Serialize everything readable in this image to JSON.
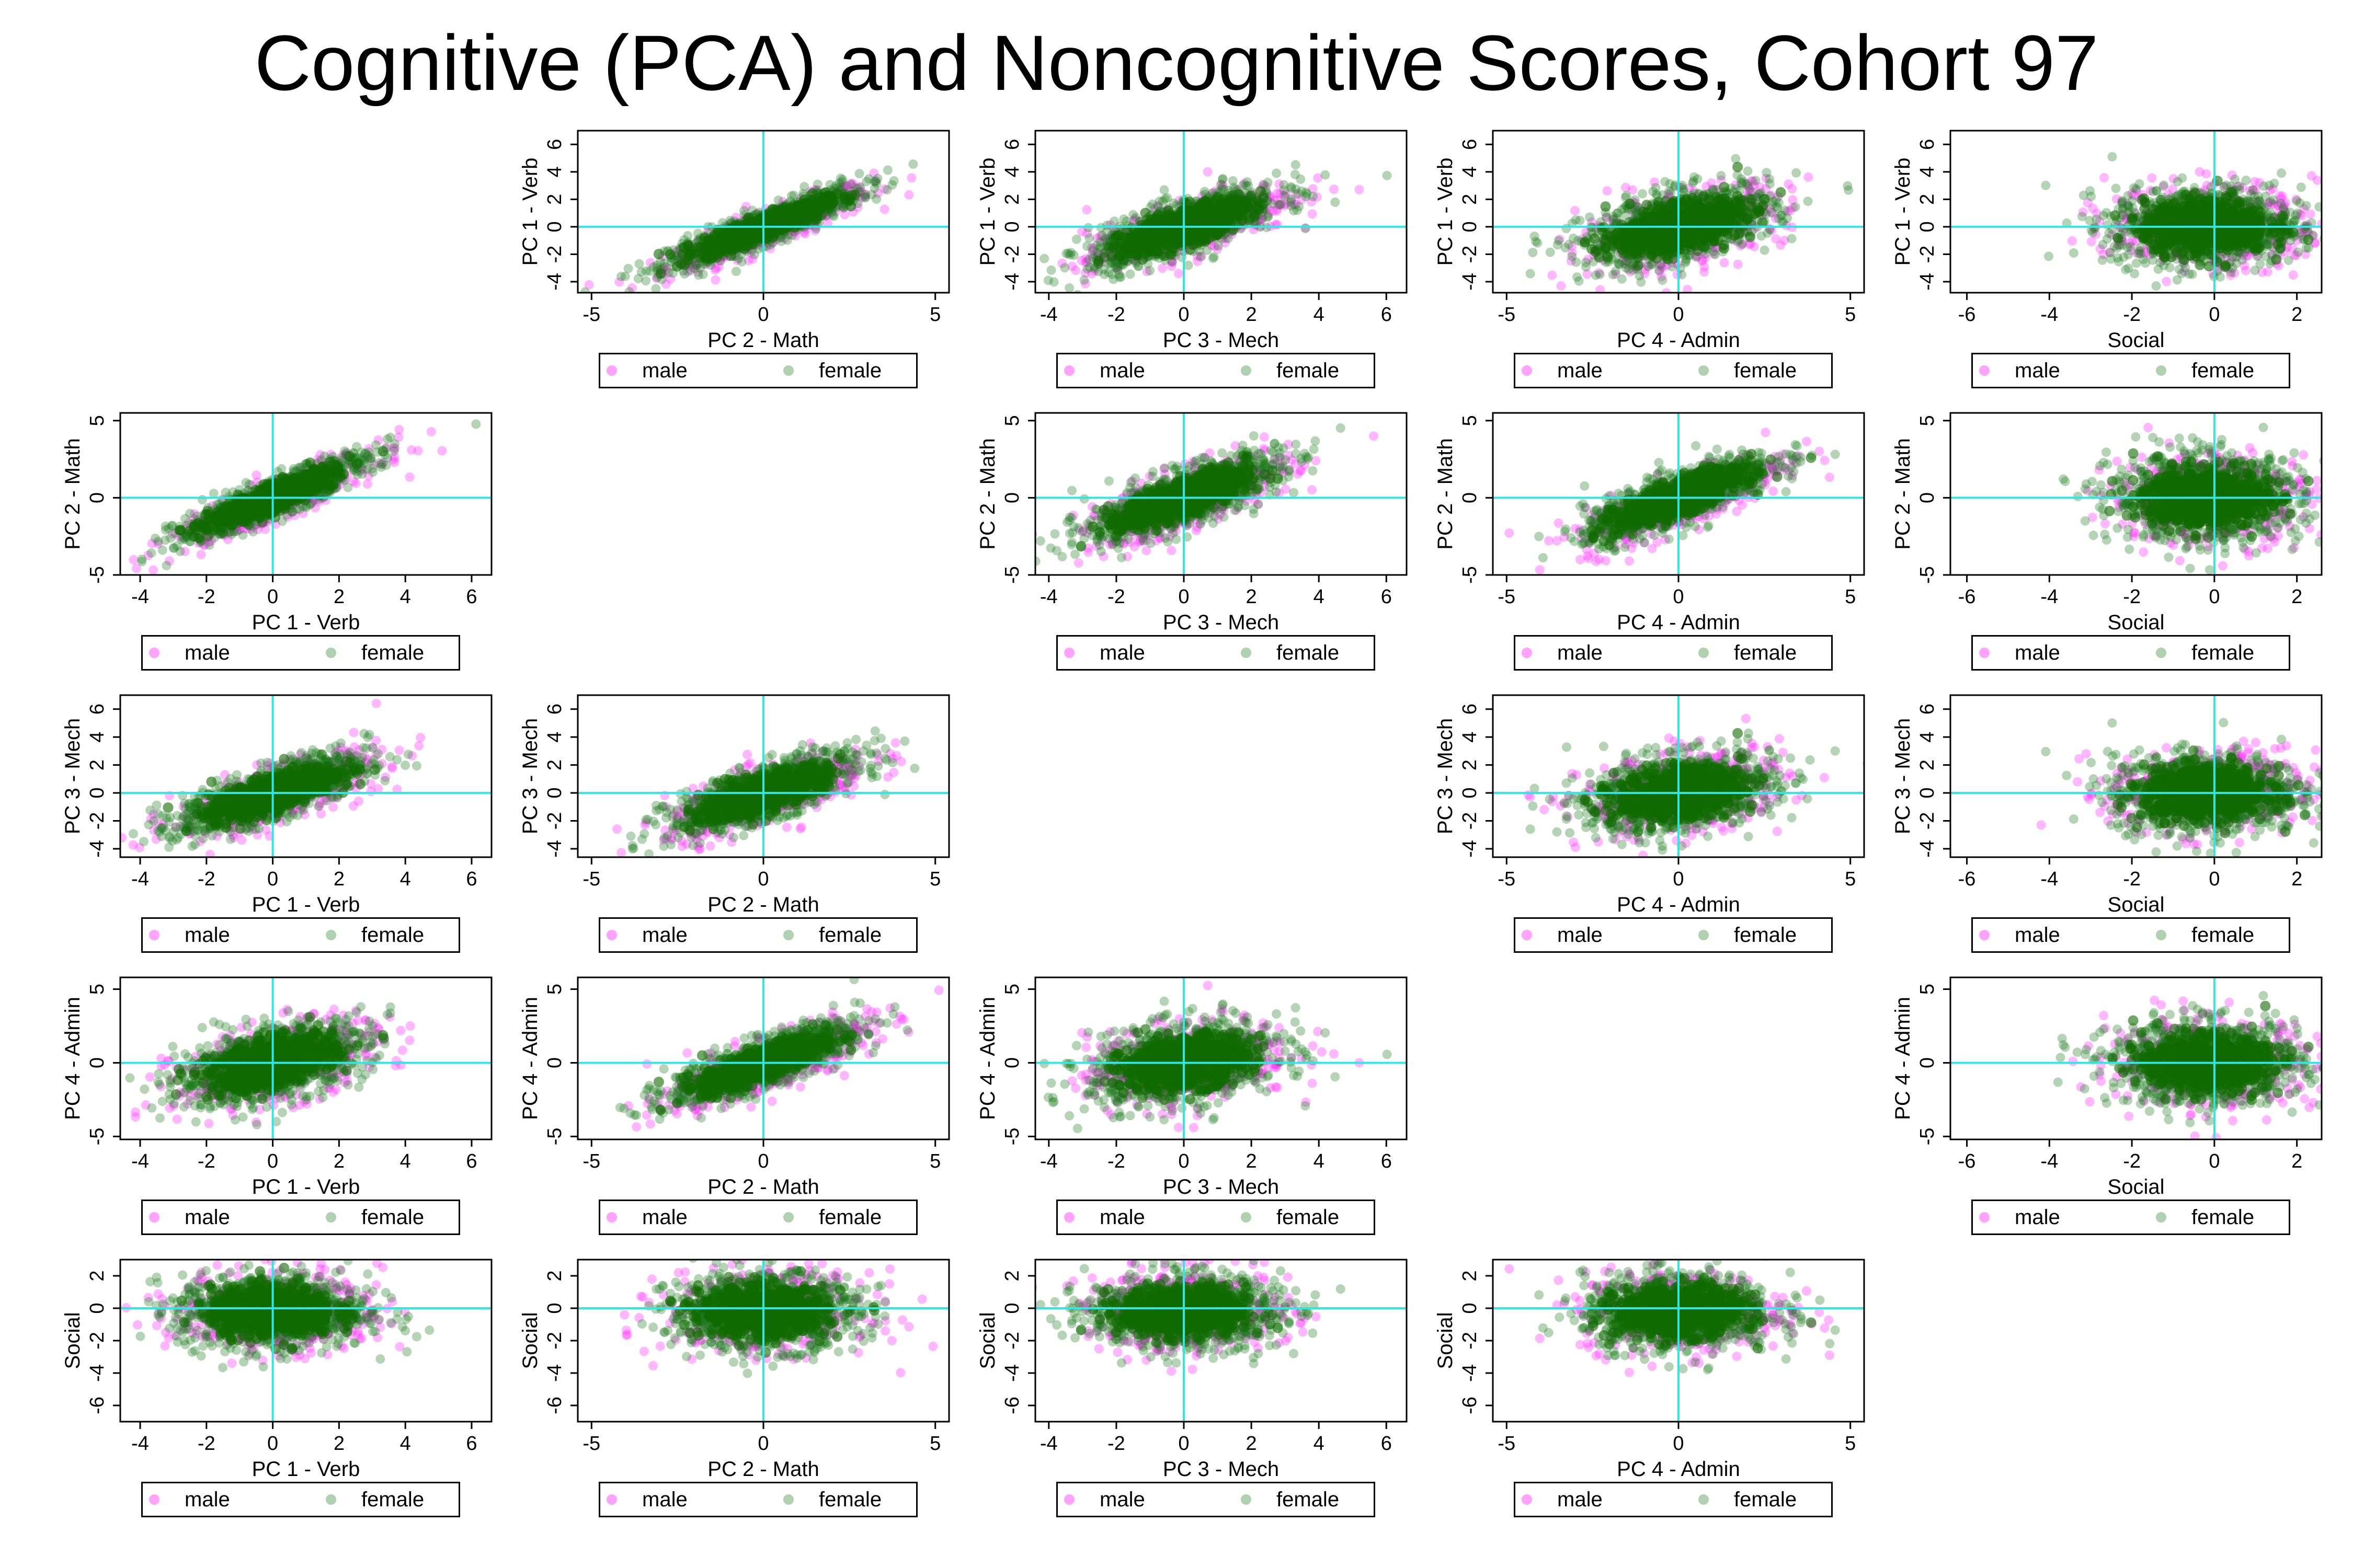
{
  "title": "Cognitive (PCA) and Noncognitive Scores, Cohort 97",
  "colors": {
    "male": "#ff33ff",
    "female": "#1a7a1a",
    "female_core": "#0f6b00",
    "reference_line": "#33e6e6"
  },
  "legend": {
    "male": "male",
    "female": "female"
  },
  "variables": [
    {
      "name": "PC 1 - Verb",
      "range": [
        -4.6,
        6.6
      ],
      "ylim": [
        -4.8,
        7.0
      ],
      "ticks": [
        -4,
        -2,
        0,
        2,
        4,
        6
      ]
    },
    {
      "name": "PC 2 - Math",
      "range": [
        -5.4,
        5.4
      ],
      "ylim": [
        -5.0,
        5.5
      ],
      "ticks": [
        -5,
        0,
        5
      ]
    },
    {
      "name": "PC 3 - Mech",
      "range": [
        -4.4,
        6.6
      ],
      "ylim": [
        -4.6,
        7.0
      ],
      "ticks": [
        -4,
        -2,
        0,
        2,
        4,
        6
      ]
    },
    {
      "name": "PC 4 - Admin",
      "range": [
        -5.4,
        5.4
      ],
      "ylim": [
        -5.2,
        5.8
      ],
      "ticks": [
        -5,
        0,
        5
      ]
    },
    {
      "name": "Social",
      "range": [
        -6.4,
        2.6
      ],
      "ylim": [
        -7.0,
        3.0
      ],
      "ticks": [
        -6,
        -4,
        -2,
        0,
        2
      ]
    }
  ],
  "chart_data": {
    "type": "scatter",
    "layout": "scatter matrix (5 x 5, diagonal empty)",
    "title": "Cognitive (PCA) and Noncognitive Scores, Cohort 97",
    "series": [
      {
        "name": "male",
        "color": "#ff33ff"
      },
      {
        "name": "female",
        "color": "#1a7a1a"
      }
    ],
    "panels": [
      {
        "row": 0,
        "col": 1,
        "xlabel": "PC 2 - Math",
        "ylabel": "PC 1 - Verb",
        "correlation": 0.9
      },
      {
        "row": 0,
        "col": 2,
        "xlabel": "PC 3 - Mech",
        "ylabel": "PC 1 - Verb",
        "correlation": 0.75
      },
      {
        "row": 0,
        "col": 3,
        "xlabel": "PC 4 - Admin",
        "ylabel": "PC 1 - Verb",
        "correlation": 0.5
      },
      {
        "row": 0,
        "col": 4,
        "xlabel": "Social",
        "ylabel": "PC 1 - Verb",
        "correlation": 0.0
      },
      {
        "row": 1,
        "col": 0,
        "xlabel": "PC 1 - Verb",
        "ylabel": "PC 2 - Math",
        "correlation": 0.9
      },
      {
        "row": 1,
        "col": 2,
        "xlabel": "PC 3 - Mech",
        "ylabel": "PC 2 - Math",
        "correlation": 0.75
      },
      {
        "row": 1,
        "col": 3,
        "xlabel": "PC 4 - Admin",
        "ylabel": "PC 2 - Math",
        "correlation": 0.8
      },
      {
        "row": 1,
        "col": 4,
        "xlabel": "Social",
        "ylabel": "PC 2 - Math",
        "correlation": 0.0
      },
      {
        "row": 2,
        "col": 0,
        "xlabel": "PC 1 - Verb",
        "ylabel": "PC 3 - Mech",
        "correlation": 0.75
      },
      {
        "row": 2,
        "col": 1,
        "xlabel": "PC 2 - Math",
        "ylabel": "PC 3 - Mech",
        "correlation": 0.75
      },
      {
        "row": 2,
        "col": 3,
        "xlabel": "PC 4 - Admin",
        "ylabel": "PC 3 - Mech",
        "correlation": 0.3
      },
      {
        "row": 2,
        "col": 4,
        "xlabel": "Social",
        "ylabel": "PC 3 - Mech",
        "correlation": 0.0
      },
      {
        "row": 3,
        "col": 0,
        "xlabel": "PC 1 - Verb",
        "ylabel": "PC 4 - Admin",
        "correlation": 0.5
      },
      {
        "row": 3,
        "col": 1,
        "xlabel": "PC 2 - Math",
        "ylabel": "PC 4 - Admin",
        "correlation": 0.8
      },
      {
        "row": 3,
        "col": 2,
        "xlabel": "PC 3 - Mech",
        "ylabel": "PC 4 - Admin",
        "correlation": 0.3
      },
      {
        "row": 3,
        "col": 4,
        "xlabel": "Social",
        "ylabel": "PC 4 - Admin",
        "correlation": 0.0
      },
      {
        "row": 4,
        "col": 0,
        "xlabel": "PC 1 - Verb",
        "ylabel": "Social",
        "correlation": 0.0
      },
      {
        "row": 4,
        "col": 1,
        "xlabel": "PC 2 - Math",
        "ylabel": "Social",
        "correlation": 0.0
      },
      {
        "row": 4,
        "col": 2,
        "xlabel": "PC 3 - Mech",
        "ylabel": "Social",
        "correlation": 0.0
      },
      {
        "row": 4,
        "col": 3,
        "xlabel": "PC 4 - Admin",
        "ylabel": "Social",
        "correlation": 0.0
      }
    ],
    "reference_lines": {
      "x": 0,
      "y": 0
    },
    "legend_position": "below each panel",
    "grid": false
  }
}
